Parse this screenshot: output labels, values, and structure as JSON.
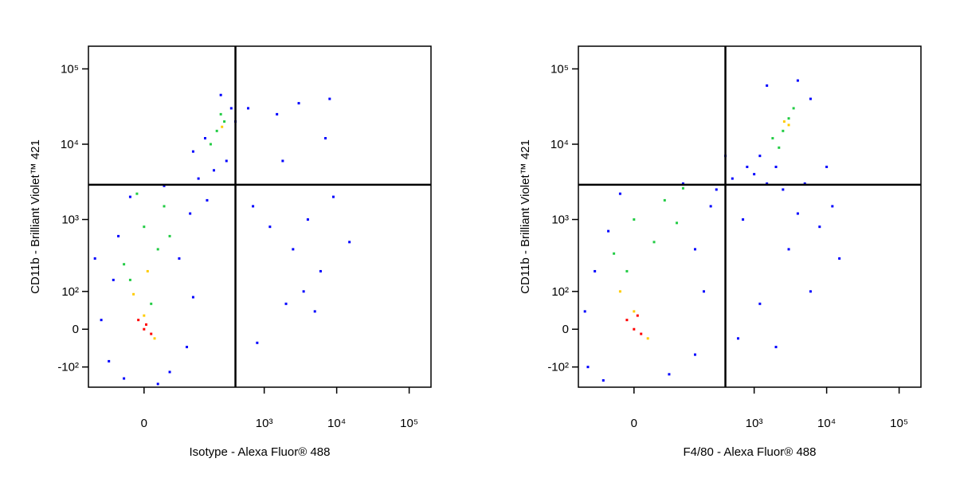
{
  "chart_data": [
    {
      "type": "scatter",
      "xlabel": "Isotype - Alexa Fluor® 488",
      "ylabel": "CD11b - Brilliant Violet™ 421",
      "xscale": "logicle",
      "yscale": "logicle",
      "xlim": [
        -125,
        200000
      ],
      "ylim": [
        -200,
        200000
      ],
      "xticks": [
        0,
        {
          "value": 1000,
          "label": "10³"
        },
        {
          "value": 10000,
          "label": "10⁴"
        },
        {
          "value": 100000,
          "label": "10⁵"
        }
      ],
      "yticks": [
        {
          "value": -100,
          "label": "-10²"
        },
        0,
        {
          "value": 100,
          "label": "10²"
        },
        {
          "value": 1000,
          "label": "10³"
        },
        {
          "value": 10000,
          "label": "10⁴"
        },
        {
          "value": 100000,
          "label": "10⁵"
        }
      ],
      "quadrant": {
        "x": 400,
        "y": 2900
      },
      "series": [
        {
          "color": "#0000ff",
          "x": [
            -60,
            -30,
            40,
            80,
            -80,
            100,
            -50,
            60,
            -40,
            90,
            -20,
            30,
            120,
            200,
            300,
            350,
            150,
            250,
            400,
            100,
            600,
            1500,
            3000,
            8000,
            700,
            1200,
            2500,
            4000,
            6000,
            9000,
            15000,
            2000,
            5000,
            800,
            3500,
            -100,
            20,
            160,
            7000,
            1800
          ],
          "values": [
            -80,
            -150,
            -120,
            -40,
            20,
            80,
            150,
            300,
            600,
            1200,
            2000,
            2800,
            3500,
            4500,
            6000,
            30000,
            12000,
            45000,
            20000,
            8000,
            30000,
            25000,
            35000,
            40000,
            1500,
            800,
            400,
            1000,
            200,
            2000,
            500,
            60,
            40,
            -30,
            100,
            300,
            -180,
            1800,
            12000,
            6000
          ]
        },
        {
          "color": "#22cc44",
          "x": [
            -20,
            20,
            0,
            -30,
            30,
            10,
            220,
            280,
            180,
            250,
            -10,
            40
          ],
          "values": [
            150,
            400,
            800,
            250,
            1500,
            60,
            15000,
            20000,
            10000,
            25000,
            2200,
            600
          ]
        },
        {
          "color": "#ffcc00",
          "x": [
            0,
            -15,
            15,
            5,
            260
          ],
          "values": [
            30,
            90,
            -20,
            200,
            17000
          ]
        },
        {
          "color": "#ff0000",
          "x": [
            0,
            -8,
            10,
            3
          ],
          "values": [
            0,
            20,
            -10,
            10
          ]
        }
      ]
    },
    {
      "type": "scatter",
      "xlabel": "F4/80 - Alexa Fluor® 488",
      "ylabel": "CD11b - Brilliant Violet™ 421",
      "xscale": "logicle",
      "yscale": "logicle",
      "xlim": [
        -125,
        200000
      ],
      "ylim": [
        -200,
        200000
      ],
      "xticks": [
        0,
        {
          "value": 1000,
          "label": "10³"
        },
        {
          "value": 10000,
          "label": "10⁴"
        },
        {
          "value": 100000,
          "label": "10⁵"
        }
      ],
      "yticks": [
        {
          "value": -100,
          "label": "-10²"
        },
        0,
        {
          "value": 100,
          "label": "10²"
        },
        {
          "value": 1000,
          "label": "10³"
        },
        {
          "value": 10000,
          "label": "10⁴"
        },
        {
          "value": 100000,
          "label": "10⁵"
        }
      ],
      "quadrant": {
        "x": 400,
        "y": 2900
      },
      "series": [
        {
          "color": "#0000ff",
          "x": [
            -90,
            -50,
            60,
            150,
            -100,
            200,
            -70,
            150,
            -40,
            250,
            300,
            500,
            800,
            400,
            1000,
            1500,
            2500,
            5000,
            8000,
            12000,
            3000,
            6000,
            1200,
            2000,
            4000,
            15000,
            700,
            1200,
            6000,
            1500,
            4000,
            2000,
            -20,
            100,
            10000,
            600
          ],
          "values": [
            -100,
            -160,
            -130,
            -60,
            40,
            100,
            200,
            400,
            700,
            1500,
            2500,
            3500,
            5000,
            7000,
            4000,
            3000,
            2500,
            3000,
            800,
            1500,
            400,
            100,
            60,
            -40,
            1200,
            300,
            1000,
            7000,
            40000,
            60000,
            70000,
            5000,
            2200,
            3000,
            5000,
            -20
          ]
        },
        {
          "color": "#22cc44",
          "x": [
            -10,
            30,
            0,
            50,
            -30,
            100,
            2500,
            3000,
            1800,
            3500,
            2200,
            80
          ],
          "values": [
            200,
            500,
            1000,
            1800,
            350,
            2600,
            15000,
            22000,
            12000,
            30000,
            9000,
            900
          ]
        },
        {
          "color": "#ffcc00",
          "x": [
            0,
            -20,
            20,
            3000,
            2600
          ],
          "values": [
            40,
            100,
            -20,
            18000,
            20000
          ]
        },
        {
          "color": "#ff0000",
          "x": [
            0,
            -10,
            10,
            5
          ],
          "values": [
            0,
            20,
            -10,
            30
          ]
        }
      ]
    }
  ]
}
